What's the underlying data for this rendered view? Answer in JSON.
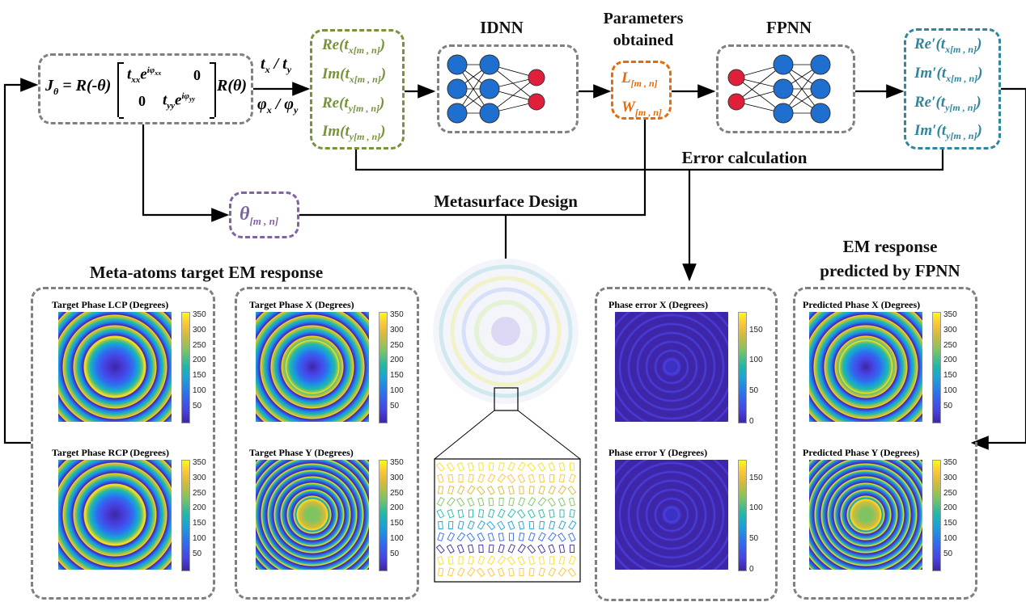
{
  "jones": {
    "lhs": "J",
    "lhs_sub": "θ",
    "eq": " = R(-θ)",
    "m11": "t",
    "m11_sub": "xx",
    "m11_e": "e",
    "m11_sup": "iφ",
    "m11_supsub": "xx",
    "m12": "0",
    "m21": "0",
    "m22": "t",
    "m22_sub": "yy",
    "m22_e": "e",
    "m22_sup": "iφ",
    "m22_supsub": "yy",
    "rhs": "R(θ)"
  },
  "arrow_labels": {
    "t": "t",
    "t_x": "x",
    "slash": " / ",
    "t_y": "y",
    "phi": "φ"
  },
  "targets_box": [
    "Re(t",
    "Im(t",
    "Re(t",
    "Im(t"
  ],
  "targets_subs": [
    "x[m , n]",
    "x[m , n]",
    "y[m , n]",
    "y[m , n]"
  ],
  "predicted_box": [
    "Re′(t",
    "Im′(t",
    "Re′(t",
    "Im′(t"
  ],
  "idnn_title": "IDNN",
  "fpnn_title": "FPNN",
  "params": {
    "title_line1": "Parameters",
    "title_line2": "obtained",
    "L": "L",
    "W": "W",
    "sub": "[m , n]"
  },
  "theta": {
    "symbol": "θ",
    "sub": "[m , n]"
  },
  "labels": {
    "error_calc": "Error calculation",
    "metasurface_design": "Metasurface Design",
    "meta_atoms_title": "Meta-atoms target EM response",
    "em_title_line1": "EM response",
    "em_title_line2": "predicted by FPNN"
  },
  "colors": {
    "green": "#77933c",
    "orange": "#e46c0a",
    "teal": "#31859c",
    "purple": "#8064a2",
    "dash": "#808080",
    "neuron_blue": "#1f6fd1",
    "neuron_red": "#e0203a"
  },
  "plots": [
    {
      "title": "Target Phase LCP (Degrees)",
      "ticks": [
        "50",
        "100",
        "150",
        "200",
        "250",
        "300",
        "350"
      ],
      "style": "lcp"
    },
    {
      "title": "Target Phase RCP (Degrees)",
      "ticks": [
        "50",
        "100",
        "150",
        "200",
        "250",
        "300",
        "350"
      ],
      "style": "lcp"
    },
    {
      "title": "Target Phase X (Degrees)",
      "ticks": [
        "50",
        "100",
        "150",
        "200",
        "250",
        "300",
        "350"
      ],
      "style": "x"
    },
    {
      "title": "Target Phase Y (Degrees)",
      "ticks": [
        "50",
        "100",
        "150",
        "200",
        "250",
        "300",
        "350"
      ],
      "style": "y"
    },
    {
      "title": "Phase error X (Degrees)",
      "ticks": [
        "0",
        "50",
        "100",
        "150"
      ],
      "style": "err"
    },
    {
      "title": "Phase error Y (Degrees)",
      "ticks": [
        "0",
        "50",
        "100",
        "150"
      ],
      "style": "err"
    },
    {
      "title": "Predicted Phase X (Degrees)",
      "ticks": [
        "50",
        "100",
        "150",
        "200",
        "250",
        "300",
        "350"
      ],
      "style": "x"
    },
    {
      "title": "Predicted Phase Y (Degrees)",
      "ticks": [
        "50",
        "100",
        "150",
        "200",
        "250",
        "300",
        "350"
      ],
      "style": "y"
    }
  ]
}
